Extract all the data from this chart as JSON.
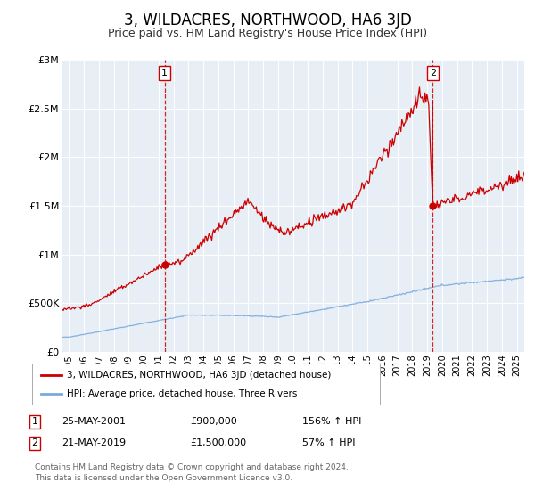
{
  "title": "3, WILDACRES, NORTHWOOD, HA6 3JD",
  "subtitle": "Price paid vs. HM Land Registry's House Price Index (HPI)",
  "title_fontsize": 12,
  "subtitle_fontsize": 9,
  "plot_bg_color": "#e8eef5",
  "outer_bg_color": "#ffffff",
  "red_line_color": "#cc0000",
  "blue_line_color": "#7aaadd",
  "marker_color": "#cc0000",
  "dashed_line_color": "#cc0000",
  "ylim": [
    0,
    3000000
  ],
  "yticks": [
    0,
    500000,
    1000000,
    1500000,
    2000000,
    2500000,
    3000000
  ],
  "ytick_labels": [
    "£0",
    "£500K",
    "£1M",
    "£1.5M",
    "£2M",
    "£2.5M",
    "£3M"
  ],
  "xlim_start": 1994.5,
  "xlim_end": 2025.5,
  "xticks": [
    1995,
    1996,
    1997,
    1998,
    1999,
    2000,
    2001,
    2002,
    2003,
    2004,
    2005,
    2006,
    2007,
    2008,
    2009,
    2010,
    2011,
    2012,
    2013,
    2014,
    2015,
    2016,
    2017,
    2018,
    2019,
    2020,
    2021,
    2022,
    2023,
    2024,
    2025
  ],
  "event1_x": 2001.4,
  "event1_y_sale": 900000,
  "event1_label": "1",
  "event2_x": 2019.37,
  "event2_y_sale": 1500000,
  "event2_label": "2",
  "event2_hpi_peak": 2580000,
  "legend_entry1": "3, WILDACRES, NORTHWOOD, HA6 3JD (detached house)",
  "legend_entry2": "HPI: Average price, detached house, Three Rivers",
  "annotation1_date": "25-MAY-2001",
  "annotation1_price": "£900,000",
  "annotation1_hpi": "156% ↑ HPI",
  "annotation2_date": "21-MAY-2019",
  "annotation2_price": "£1,500,000",
  "annotation2_hpi": "57% ↑ HPI",
  "footer1": "Contains HM Land Registry data © Crown copyright and database right 2024.",
  "footer2": "This data is licensed under the Open Government Licence v3.0."
}
